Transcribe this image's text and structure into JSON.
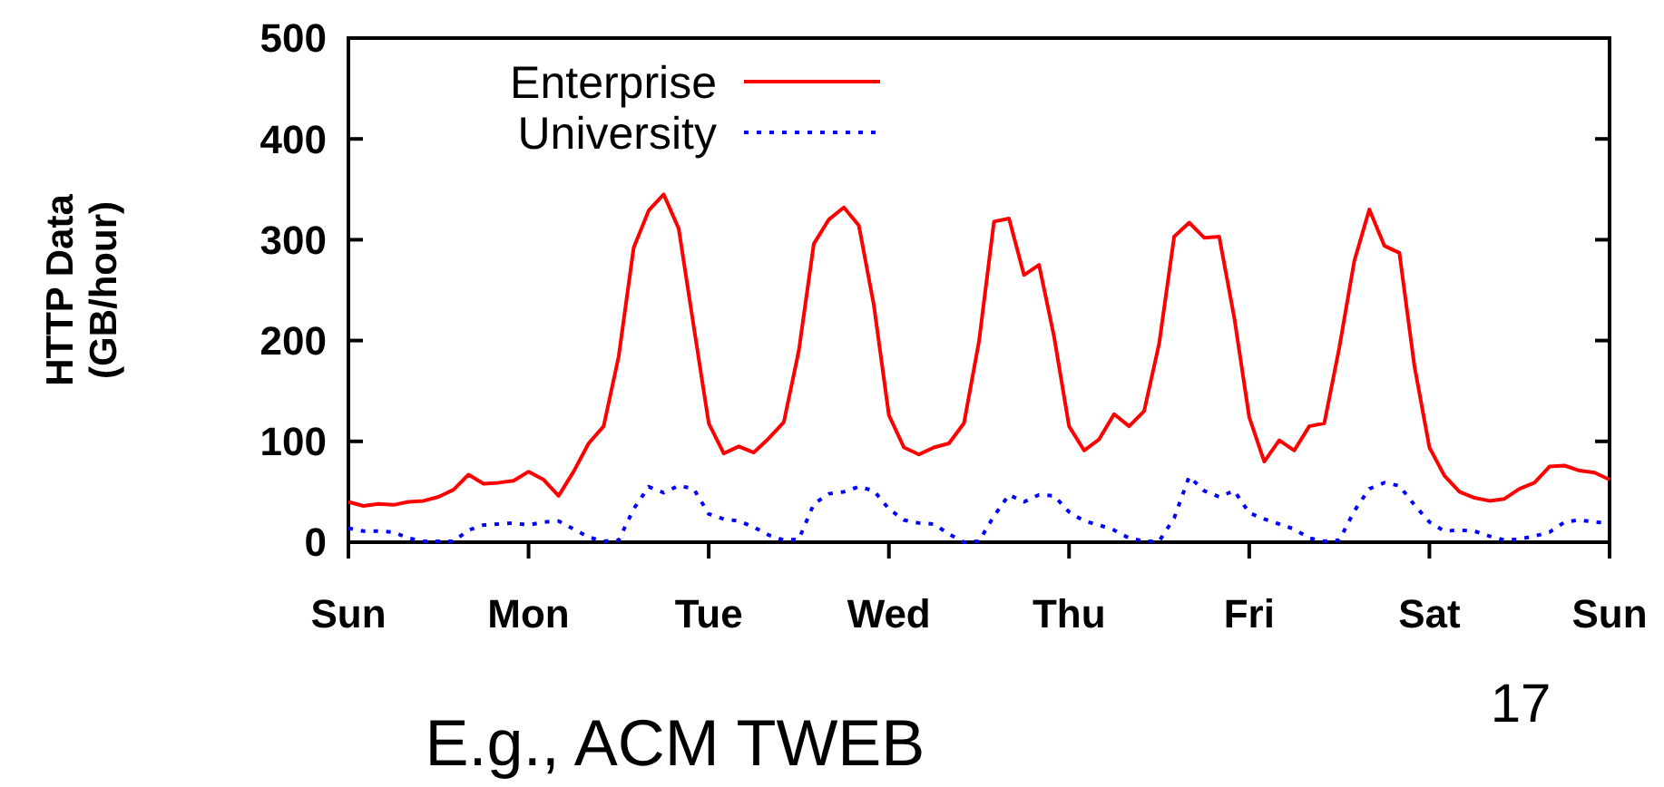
{
  "chart_data": {
    "type": "line",
    "ylabel": "HTTP Data\n(GB/hour)",
    "annotations": [
      "17",
      "E.g., ACM TWEB"
    ],
    "categories": [
      "Sun",
      null,
      null,
      null,
      null,
      null,
      null,
      null,
      null,
      null,
      null,
      null,
      "Mon",
      null,
      null,
      null,
      null,
      null,
      null,
      null,
      null,
      null,
      null,
      null,
      "Tue",
      null,
      null,
      null,
      null,
      null,
      null,
      null,
      null,
      null,
      null,
      null,
      "Wed",
      null,
      null,
      null,
      null,
      null,
      null,
      null,
      null,
      null,
      null,
      null,
      "Thu",
      null,
      null,
      null,
      null,
      null,
      null,
      null,
      null,
      null,
      null,
      null,
      "Fri",
      null,
      null,
      null,
      null,
      null,
      null,
      null,
      null,
      null,
      null,
      null,
      "Sat",
      null,
      null,
      null,
      null,
      null,
      null,
      null,
      null,
      null,
      null,
      null,
      "Sun"
    ],
    "ylim": [
      0,
      500
    ],
    "yticks": [
      0,
      100,
      200,
      300,
      400,
      500
    ],
    "legend": "top left",
    "grid": false,
    "marker": "none",
    "series": [
      {
        "name": "Enterprise",
        "color": "#ff0000",
        "line_style": "solid",
        "values": [
          40,
          36,
          38,
          37,
          40,
          41,
          45,
          52,
          67,
          58,
          59,
          61,
          70,
          62,
          46,
          70,
          98,
          115,
          184,
          292,
          329,
          345,
          311,
          214,
          118,
          88,
          95,
          89,
          103,
          119,
          190,
          296,
          320,
          332,
          314,
          235,
          126,
          94,
          87,
          94,
          98,
          118,
          199,
          318,
          321,
          265,
          275,
          204,
          115,
          91,
          102,
          127,
          115,
          130,
          197,
          303,
          317,
          302,
          303,
          223,
          124,
          80,
          101,
          91,
          115,
          118,
          193,
          279,
          330,
          294,
          287,
          175,
          94,
          66,
          50,
          44,
          41,
          43,
          53,
          59,
          75,
          76,
          71,
          69,
          62
        ]
      },
      {
        "name": "University",
        "color": "#0000ff",
        "line_style": "dotted",
        "values": [
          14,
          11,
          11,
          10,
          4,
          1,
          1,
          1,
          12,
          17,
          18,
          19,
          17,
          20,
          21,
          13,
          5,
          1,
          2,
          33,
          55,
          49,
          56,
          53,
          28,
          23,
          21,
          15,
          7,
          2,
          3,
          38,
          48,
          50,
          55,
          51,
          33,
          22,
          19,
          18,
          8,
          0,
          1,
          26,
          47,
          40,
          47,
          46,
          30,
          21,
          17,
          12,
          4,
          1,
          1,
          24,
          65,
          51,
          45,
          51,
          29,
          23,
          18,
          13,
          4,
          1,
          2,
          31,
          53,
          59,
          56,
          37,
          20,
          11,
          12,
          11,
          6,
          2,
          3,
          6,
          10,
          20,
          22,
          20,
          19
        ]
      }
    ]
  }
}
